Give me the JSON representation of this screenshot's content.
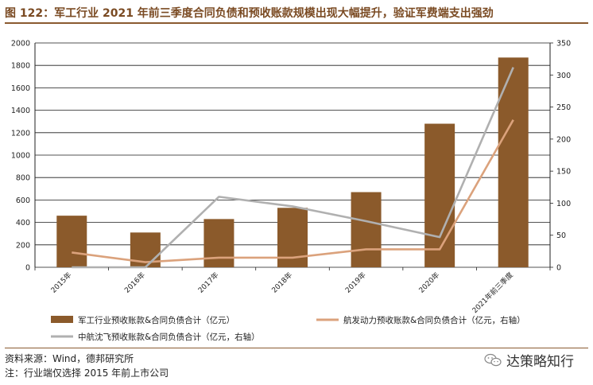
{
  "figure_title": "图 122：军工行业 2021 年前三季度合同负债和预收账款规模出现大幅提升，验证军费端支出强劲",
  "source_note": "资料来源：Wind，德邦研究所",
  "footnote": "注：行业端仅选择 2015 年前上市公司",
  "watermark": "达策略知行",
  "watermark_icon": "wechat-icon",
  "colors": {
    "bar": "#8b5a2b",
    "line_aero": "#dba27c",
    "line_avic": "#b0b0b0",
    "title": "#7a4a22",
    "rule": "#8a5a30"
  },
  "chart_data": {
    "type": "bar",
    "categories": [
      "2015年",
      "2016年",
      "2017年",
      "2018年",
      "2019年",
      "2020年",
      "2021年前三季度"
    ],
    "series": [
      {
        "name": "军工行业预收账款&合同负债合计（亿元）",
        "type": "bar",
        "axis": "left",
        "values": [
          460,
          310,
          430,
          530,
          670,
          1280,
          1870
        ]
      },
      {
        "name": "航发动力预收账款&合同负债合计（亿元，右轴）",
        "type": "line",
        "axis": "right",
        "values": [
          23,
          8,
          15,
          15,
          28,
          28,
          230
        ]
      },
      {
        "name": "中航沈飞预收账款&合同负债合计（亿元，右轴）",
        "type": "line",
        "axis": "right",
        "values": [
          0,
          0,
          110,
          95,
          72,
          47,
          312
        ]
      }
    ],
    "ylim": [
      0,
      2000
    ],
    "yticks": [
      0,
      200,
      400,
      600,
      800,
      1000,
      1200,
      1400,
      1600,
      1800,
      2000
    ],
    "y2lim": [
      0,
      350
    ],
    "y2ticks": [
      0,
      50,
      100,
      150,
      200,
      250,
      300,
      350
    ],
    "grid": true,
    "legend_position": "bottom"
  }
}
